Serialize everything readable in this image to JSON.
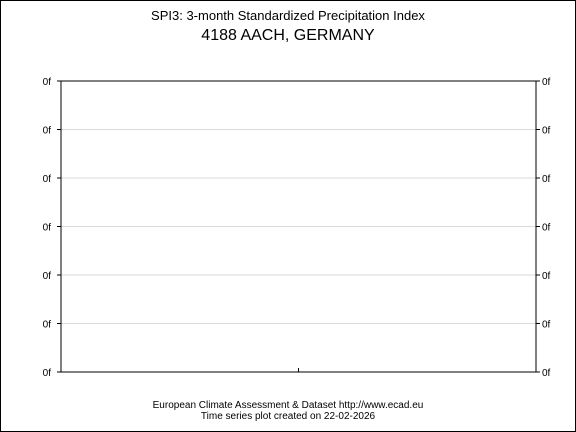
{
  "header": {
    "title": "SPI3: 3-month Standardized Precipitation Index",
    "subtitle": "4188 AACH, GERMANY"
  },
  "footer": {
    "credit": "European Climate Assessment & Dataset  http://www.ecad.eu",
    "created": "Time series plot created on 22-02-2026"
  },
  "chart_data": {
    "type": "line",
    "title": "SPI3: 3-month Standardized Precipitation Index",
    "subtitle": "4188 AACH, GERMANY",
    "xlabel": "",
    "ylabel": "",
    "y_tick_labels_left": [
      "0f",
      "0f",
      "0f",
      "0f",
      "0f",
      "0f",
      "0f"
    ],
    "y_tick_labels_right": [
      "0f",
      "0f",
      "0f",
      "0f",
      "0f",
      "0f",
      "0f"
    ],
    "series": [],
    "grid": true,
    "legend": "none",
    "colors": {
      "grid": "#d9d9d9",
      "axes": "#000000"
    }
  }
}
